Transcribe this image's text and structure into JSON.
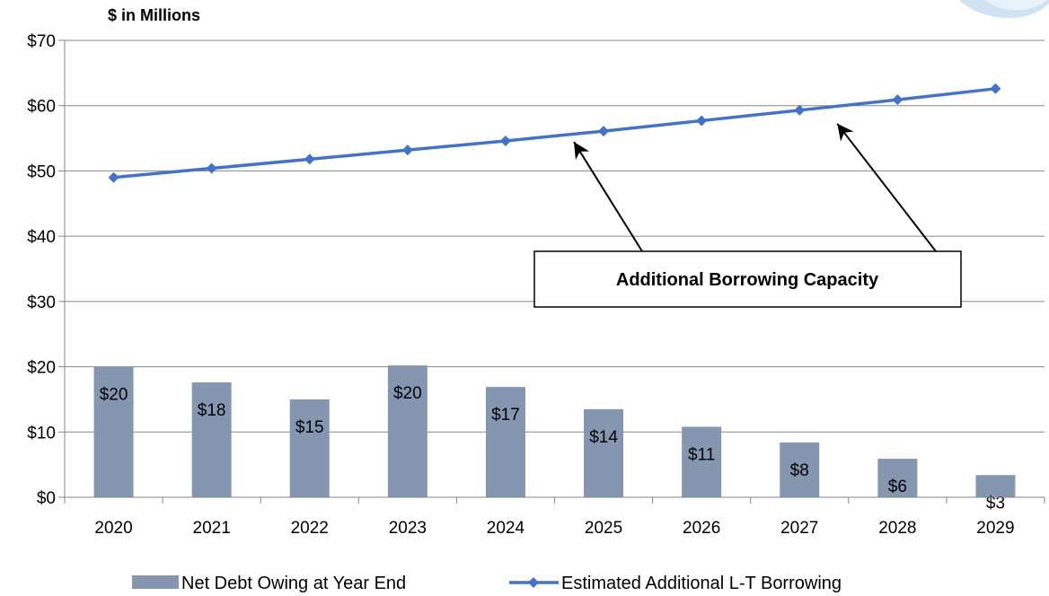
{
  "chart_data": {
    "type": "bar",
    "unit_label": "$ in Millions",
    "categories": [
      "2020",
      "2021",
      "2022",
      "2023",
      "2024",
      "2025",
      "2026",
      "2027",
      "2028",
      "2029"
    ],
    "ylim": [
      0,
      70
    ],
    "yticks": [
      {
        "value": 0,
        "label": "$0"
      },
      {
        "value": 10,
        "label": "$10"
      },
      {
        "value": 20,
        "label": "$20"
      },
      {
        "value": 30,
        "label": "$30"
      },
      {
        "value": 40,
        "label": "$40"
      },
      {
        "value": 50,
        "label": "$50"
      },
      {
        "value": 60,
        "label": "$60"
      },
      {
        "value": 70,
        "label": "$70"
      }
    ],
    "grid": true,
    "legend_position": "bottom",
    "series": [
      {
        "name": "Net Debt Owing at Year End",
        "type": "bar",
        "color": "#8496b0",
        "values": [
          20.0,
          17.6,
          15.0,
          20.2,
          16.9,
          13.5,
          10.8,
          8.4,
          5.9,
          3.4
        ],
        "labels": [
          "$20",
          "$18",
          "$15",
          "$20",
          "$17",
          "$14",
          "$11",
          "$8",
          "$6",
          "$3"
        ]
      },
      {
        "name": "Estimated Additional L-T Borrowing",
        "type": "line",
        "color": "#4472c4",
        "marker": "diamond",
        "values": [
          49.0,
          50.4,
          51.8,
          53.2,
          54.6,
          56.1,
          57.7,
          59.3,
          60.9,
          62.6
        ]
      }
    ],
    "annotations": [
      {
        "text": "Additional Borrowing Capacity",
        "points_to_years": [
          "2025",
          "2027"
        ]
      }
    ]
  }
}
